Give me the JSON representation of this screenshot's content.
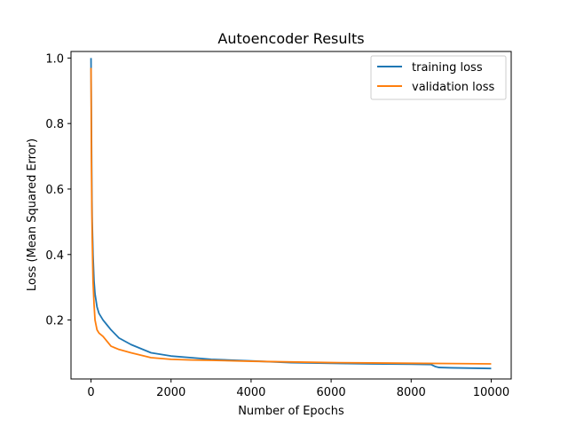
{
  "chart_data": {
    "type": "line",
    "title": "Autoencoder Results",
    "xlabel": "Number of Epochs",
    "ylabel": "Loss (Mean Squared Error)",
    "xlim": [
      -500,
      10500
    ],
    "ylim": [
      0.02,
      1.02
    ],
    "xticks": [
      0,
      2000,
      4000,
      6000,
      8000,
      10000
    ],
    "yticks": [
      0.2,
      0.4,
      0.6,
      0.8,
      1.0
    ],
    "xtick_labels": [
      "0",
      "2000",
      "4000",
      "6000",
      "8000",
      "10000"
    ],
    "ytick_labels": [
      "0.2",
      "0.4",
      "0.6",
      "0.8",
      "1.0"
    ],
    "grid": false,
    "legend_position": "top-right",
    "series": [
      {
        "name": "training loss",
        "color": "#1f77b4",
        "x": [
          0,
          10,
          20,
          30,
          50,
          75,
          100,
          150,
          200,
          300,
          400,
          500,
          700,
          1000,
          1500,
          2000,
          2500,
          3000,
          4000,
          5000,
          6000,
          7000,
          8000,
          8500,
          8600,
          8700,
          9000,
          9500,
          10000
        ],
        "y": [
          1.0,
          0.8,
          0.6,
          0.5,
          0.4,
          0.32,
          0.28,
          0.24,
          0.22,
          0.2,
          0.185,
          0.17,
          0.145,
          0.125,
          0.1,
          0.09,
          0.085,
          0.08,
          0.075,
          0.07,
          0.068,
          0.066,
          0.065,
          0.064,
          0.058,
          0.055,
          0.054,
          0.053,
          0.052
        ]
      },
      {
        "name": "validation loss",
        "color": "#ff7f0e",
        "x": [
          0,
          10,
          20,
          30,
          50,
          75,
          100,
          150,
          200,
          300,
          400,
          500,
          700,
          1000,
          1500,
          2000,
          2500,
          3000,
          4000,
          5000,
          6000,
          7000,
          8000,
          9000,
          10000
        ],
        "y": [
          0.97,
          0.7,
          0.55,
          0.45,
          0.32,
          0.25,
          0.2,
          0.17,
          0.16,
          0.15,
          0.135,
          0.12,
          0.11,
          0.1,
          0.085,
          0.08,
          0.078,
          0.077,
          0.074,
          0.072,
          0.07,
          0.069,
          0.068,
          0.067,
          0.066
        ]
      }
    ]
  }
}
